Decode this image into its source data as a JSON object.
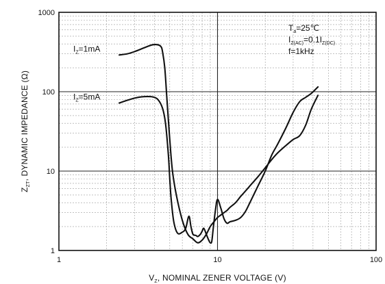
{
  "chart_data": {
    "type": "line",
    "xlabel": {
      "main": "V",
      "sub": "Z",
      "rest": ", NOMINAL ZENER VOLTAGE (V)"
    },
    "ylabel": {
      "main": "Z",
      "sub": "ZT",
      "rest": ", DYNAMIC IMPEDANCE (Ω)"
    },
    "x_scale": "log",
    "y_scale": "log",
    "xlim": [
      1,
      100
    ],
    "ylim": [
      1,
      1000
    ],
    "grid": true,
    "x_ticks": [
      {
        "value": 1,
        "label": "1"
      },
      {
        "value": 10,
        "label": "10"
      },
      {
        "value": 100,
        "label": "100"
      }
    ],
    "y_ticks": [
      {
        "value": 1,
        "label": "1"
      },
      {
        "value": 10,
        "label": "10"
      },
      {
        "value": 100,
        "label": "100"
      },
      {
        "value": 1000,
        "label": "1000"
      }
    ],
    "conditions": [
      {
        "parts": [
          {
            "t": "T",
            "sub": false
          },
          {
            "t": "a",
            "sub": true
          },
          {
            "t": "=25℃",
            "sub": false
          }
        ]
      },
      {
        "parts": [
          {
            "t": "I",
            "sub": false
          },
          {
            "t": "Z(AC)",
            "sub": true
          },
          {
            "t": "=0.1I",
            "sub": false
          },
          {
            "t": "Z(DC)",
            "sub": true
          }
        ]
      },
      {
        "parts": [
          {
            "t": "f=1kHz",
            "sub": false
          }
        ]
      }
    ],
    "series": [
      {
        "name": "I_Z=1mA",
        "label": {
          "main": "I",
          "sub": "Z",
          "rest": "=1mA"
        },
        "x": [
          2.4,
          2.7,
          3.0,
          3.3,
          3.6,
          3.9,
          4.2,
          4.4,
          4.5,
          4.65,
          4.8,
          5.0,
          5.2,
          5.5,
          6.0,
          6.5,
          7.0,
          7.5,
          8.0,
          8.5,
          9.0,
          9.5,
          10.0,
          10.5,
          11.0,
          11.5,
          12,
          13,
          14,
          15,
          16,
          18,
          20,
          22,
          24,
          27,
          30,
          33,
          36,
          39,
          43
        ],
        "y": [
          290,
          300,
          320,
          345,
          370,
          390,
          390,
          370,
          320,
          200,
          80,
          25,
          10,
          5,
          2.4,
          1.6,
          1.4,
          1.25,
          1.35,
          1.6,
          2.0,
          2.3,
          2.6,
          2.8,
          3.0,
          3.2,
          3.5,
          4.0,
          4.8,
          5.6,
          6.5,
          8.5,
          11,
          14,
          17,
          21,
          25,
          28,
          38,
          60,
          90
        ]
      },
      {
        "name": "I_Z=5mA",
        "label": {
          "main": "I",
          "sub": "Z",
          "rest": "=5mA"
        },
        "x": [
          2.4,
          2.7,
          3.0,
          3.3,
          3.6,
          3.9,
          4.2,
          4.5,
          4.7,
          4.9,
          5.0,
          5.1,
          5.3,
          5.6,
          6.0,
          6.3,
          6.6,
          6.8,
          7.0,
          7.3,
          7.5,
          7.8,
          8.0,
          8.2,
          8.5,
          8.8,
          9.0,
          9.2,
          9.4,
          9.7,
          10.0,
          10.5,
          11,
          11.5,
          12,
          13,
          14,
          15,
          16,
          18,
          20,
          22,
          24,
          27,
          30,
          33,
          36,
          39,
          43
        ],
        "y": [
          72,
          78,
          83,
          86,
          87,
          86,
          80,
          62,
          40,
          16,
          8,
          4.5,
          2.3,
          1.65,
          1.7,
          1.9,
          2.7,
          2.0,
          1.6,
          1.55,
          1.5,
          1.6,
          1.75,
          1.9,
          1.6,
          1.35,
          1.25,
          1.3,
          1.9,
          3.2,
          4.4,
          3.4,
          2.5,
          2.2,
          2.3,
          2.4,
          2.6,
          3.1,
          4.0,
          6.5,
          10,
          16,
          22,
          35,
          55,
          75,
          85,
          95,
          115
        ]
      }
    ]
  }
}
